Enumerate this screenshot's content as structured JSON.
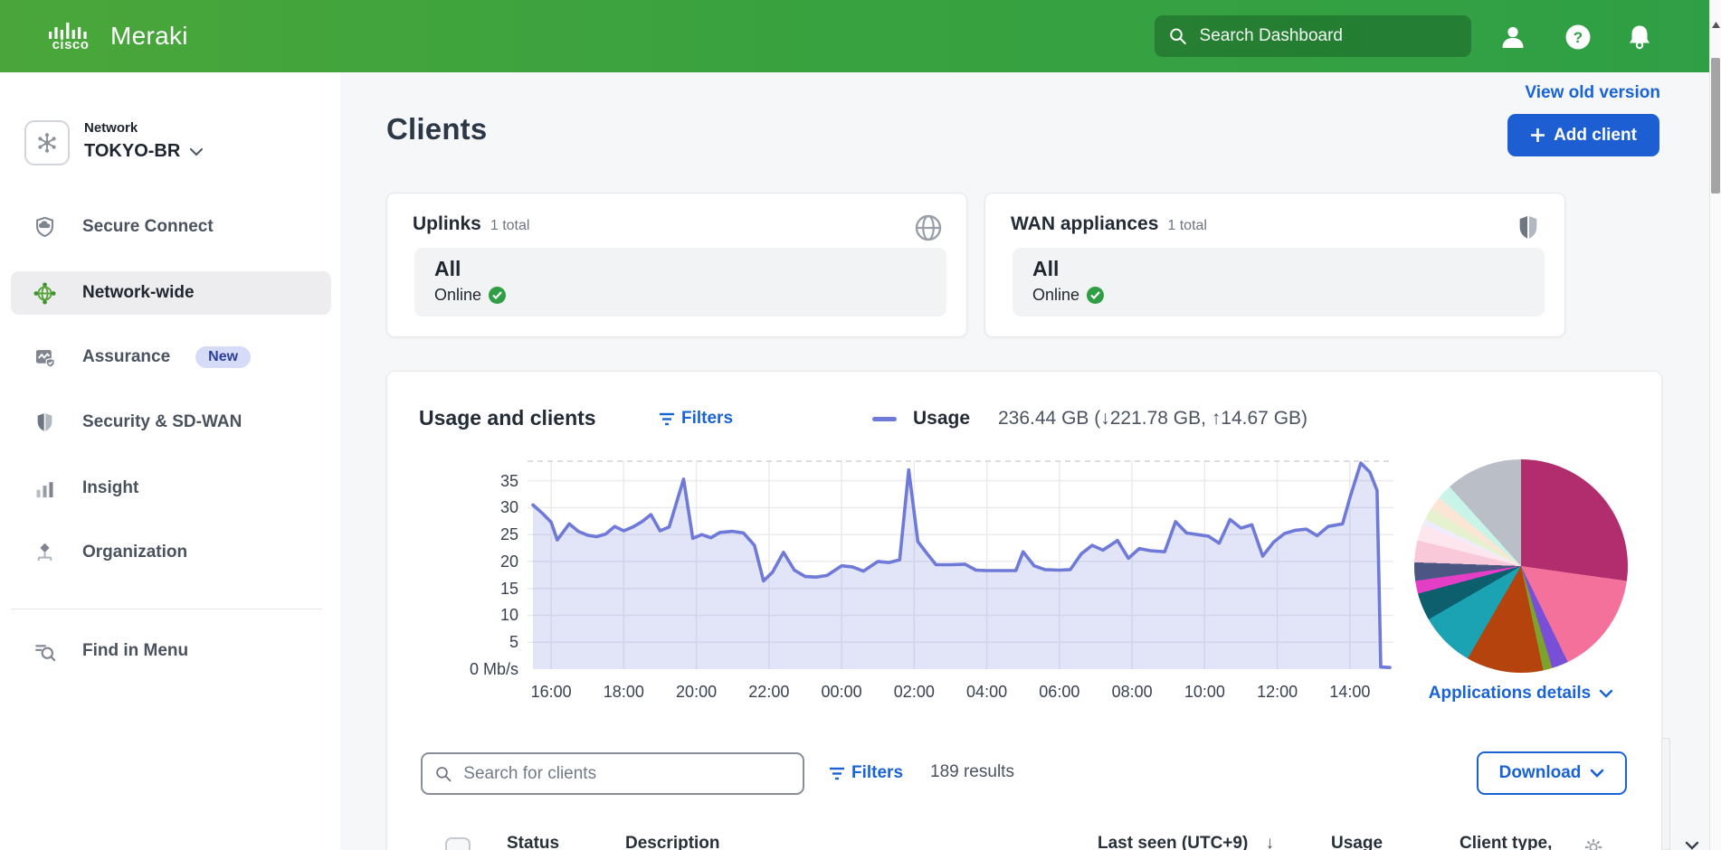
{
  "brand": {
    "cisco": "cisco",
    "meraki": "Meraki"
  },
  "header": {
    "search_placeholder": "Search Dashboard"
  },
  "sidebar": {
    "network_label": "Network",
    "network_name": "TOKYO-BR",
    "items": [
      {
        "label": "Secure Connect"
      },
      {
        "label": "Network-wide"
      },
      {
        "label": "Assurance",
        "badge": "New"
      },
      {
        "label": "Security & SD-WAN"
      },
      {
        "label": "Insight"
      },
      {
        "label": "Organization"
      }
    ],
    "find_in_menu": "Find in Menu"
  },
  "page": {
    "title": "Clients",
    "view_old_version": "View old version",
    "add_client_label": "Add client"
  },
  "uplinks_card": {
    "title": "Uplinks",
    "count": "1 total",
    "scope": "All",
    "status": "Online"
  },
  "wan_card": {
    "title": "WAN appliances",
    "count": "1 total",
    "scope": "All",
    "status": "Online"
  },
  "usage_section": {
    "title": "Usage and clients",
    "filters_label": "Filters",
    "legend_name": "Usage",
    "legend_stats": "236.44 GB (↓221.78 GB, ↑14.67 GB)",
    "applications_link": "Applications details"
  },
  "toolbar": {
    "search_placeholder": "Search for clients",
    "filters_label": "Filters",
    "results": "189 results",
    "download_label": "Download"
  },
  "table": {
    "columns": [
      "Status",
      "Description",
      "Last seen (UTC+9)",
      "Usage",
      "Client type,"
    ],
    "sort_indicator": "↓"
  },
  "chart_data": {
    "usage_timeline": {
      "type": "area",
      "unit": "Mb/s",
      "x_domain": [
        15.35,
        39.2
      ],
      "ylim": [
        0,
        38.8
      ],
      "line_color": "#6f7ad8",
      "fill_color": "rgba(124,132,218,0.22)",
      "grid": true,
      "x_ticks": [
        {
          "x": 16,
          "label": "16:00"
        },
        {
          "x": 18,
          "label": "18:00"
        },
        {
          "x": 20,
          "label": "20:00"
        },
        {
          "x": 22,
          "label": "22:00"
        },
        {
          "x": 24,
          "label": "00:00"
        },
        {
          "x": 26,
          "label": "02:00"
        },
        {
          "x": 28,
          "label": "04:00"
        },
        {
          "x": 30,
          "label": "06:00"
        },
        {
          "x": 32,
          "label": "08:00"
        },
        {
          "x": 34,
          "label": "10:00"
        },
        {
          "x": 36,
          "label": "12:00"
        },
        {
          "x": 38,
          "label": "14:00"
        }
      ],
      "y_ticks": [
        {
          "v": 35,
          "label": "35"
        },
        {
          "v": 30,
          "label": "30"
        },
        {
          "v": 25,
          "label": "25"
        },
        {
          "v": 20,
          "label": "20"
        },
        {
          "v": 15,
          "label": "15"
        },
        {
          "v": 10,
          "label": "10"
        },
        {
          "v": 5,
          "label": "5"
        },
        {
          "v": 0,
          "label": "0 Mb/s"
        }
      ],
      "points_x": [
        15.5,
        15.75,
        16.0,
        16.17,
        16.5,
        16.75,
        17.0,
        17.25,
        17.5,
        17.75,
        18.0,
        18.25,
        18.5,
        18.75,
        19.0,
        19.25,
        19.65,
        19.9,
        20.15,
        20.4,
        20.65,
        21.0,
        21.3,
        21.6,
        21.85,
        22.1,
        22.4,
        22.7,
        23.0,
        23.3,
        23.6,
        24.0,
        24.3,
        24.6,
        25.0,
        25.3,
        25.6,
        25.85,
        26.1,
        26.35,
        26.6,
        27.0,
        27.4,
        27.7,
        28.0,
        28.4,
        28.8,
        29.0,
        29.3,
        29.6,
        30.0,
        30.3,
        30.6,
        30.9,
        31.2,
        31.6,
        31.9,
        32.2,
        32.5,
        32.9,
        33.2,
        33.5,
        33.8,
        34.1,
        34.4,
        34.7,
        35.0,
        35.3,
        35.6,
        35.9,
        36.2,
        36.5,
        36.8,
        37.1,
        37.4,
        37.8,
        38.0,
        38.3,
        38.55,
        38.75,
        38.85,
        39.1
      ],
      "points_v": [
        30.5,
        29.0,
        27.3,
        24.0,
        27.0,
        25.6,
        24.9,
        24.6,
        25.1,
        26.5,
        25.7,
        26.4,
        27.4,
        28.7,
        25.7,
        26.4,
        35.3,
        24.3,
        25.0,
        24.4,
        25.4,
        25.6,
        25.3,
        23.0,
        16.4,
        18.0,
        21.7,
        18.4,
        17.2,
        17.1,
        17.4,
        19.2,
        19.0,
        18.2,
        20.0,
        19.8,
        20.3,
        37.0,
        23.7,
        21.5,
        19.4,
        19.4,
        19.5,
        18.4,
        18.3,
        18.3,
        18.3,
        21.8,
        19.2,
        18.5,
        18.4,
        18.5,
        21.4,
        23.0,
        22.1,
        23.9,
        20.6,
        22.4,
        22.0,
        21.8,
        27.4,
        25.3,
        25.0,
        24.7,
        23.4,
        27.8,
        26.2,
        26.8,
        21.0,
        23.6,
        25.2,
        25.8,
        26.0,
        24.8,
        26.5,
        27.0,
        31.8,
        38.3,
        36.6,
        33.2,
        0.4,
        0.3
      ]
    },
    "applications_pie": {
      "type": "pie",
      "slices": [
        {
          "deg": 98,
          "color": "#b12d6d"
        },
        {
          "deg": 56,
          "color": "#f4719c"
        },
        {
          "deg": 9,
          "color": "#7a4fd8"
        },
        {
          "deg": 5,
          "color": "#7da32b"
        },
        {
          "deg": 42,
          "color": "#b5430e"
        },
        {
          "deg": 30,
          "color": "#1ba3b4"
        },
        {
          "deg": 15,
          "color": "#0d5f6d"
        },
        {
          "deg": 7,
          "color": "#e43ec6"
        },
        {
          "deg": 10,
          "color": "#4b5682"
        },
        {
          "deg": 12,
          "color": "#f9c9da"
        },
        {
          "deg": 9,
          "color": "#fde6ee"
        },
        {
          "deg": 3,
          "color": "#efecfd"
        },
        {
          "deg": 7,
          "color": "#e6f1d0"
        },
        {
          "deg": 7,
          "color": "#fbe6d6"
        },
        {
          "deg": 8,
          "color": "#c9f4e8"
        },
        {
          "deg": 42,
          "color": "#b9bec7"
        }
      ]
    }
  }
}
